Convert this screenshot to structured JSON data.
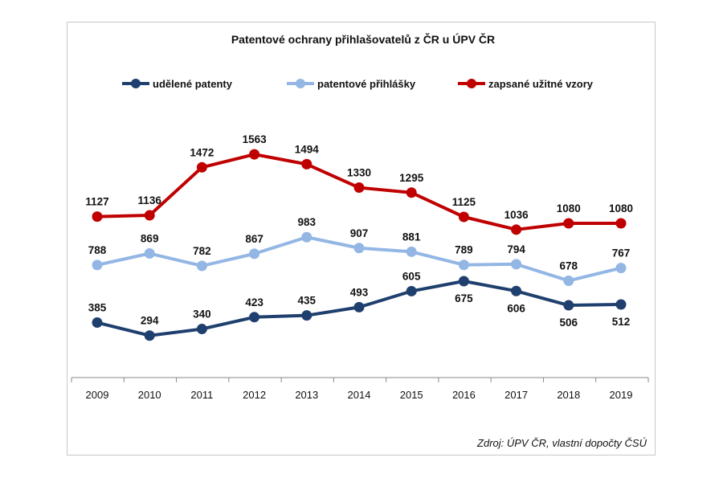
{
  "chart_data": {
    "type": "line",
    "title": "Patentové ochrany přihlašovatelů z ČR u ÚPV ČR",
    "source": "Zdroj: ÚPV ČR, vlastní dopočty ČSÚ",
    "categories": [
      "2009",
      "2010",
      "2011",
      "2012",
      "2013",
      "2014",
      "2015",
      "2016",
      "2017",
      "2018",
      "2019"
    ],
    "ylim": [
      0,
      1800
    ],
    "grid": false,
    "legend_position": "top",
    "series": [
      {
        "name": "udělené patenty",
        "color": "#1f3f6e",
        "label_position": "mixed",
        "values": [
          385,
          294,
          340,
          423,
          435,
          493,
          605,
          675,
          606,
          506,
          512
        ]
      },
      {
        "name": "patentové přihlášky",
        "color": "#93b6e4",
        "label_position": "above",
        "values": [
          788,
          869,
          782,
          867,
          983,
          907,
          881,
          789,
          794,
          678,
          767
        ]
      },
      {
        "name": "zapsané užitné vzory",
        "color": "#c00000",
        "label_position": "above",
        "values": [
          1127,
          1136,
          1472,
          1563,
          1494,
          1330,
          1295,
          1125,
          1036,
          1080,
          1080
        ]
      }
    ]
  }
}
